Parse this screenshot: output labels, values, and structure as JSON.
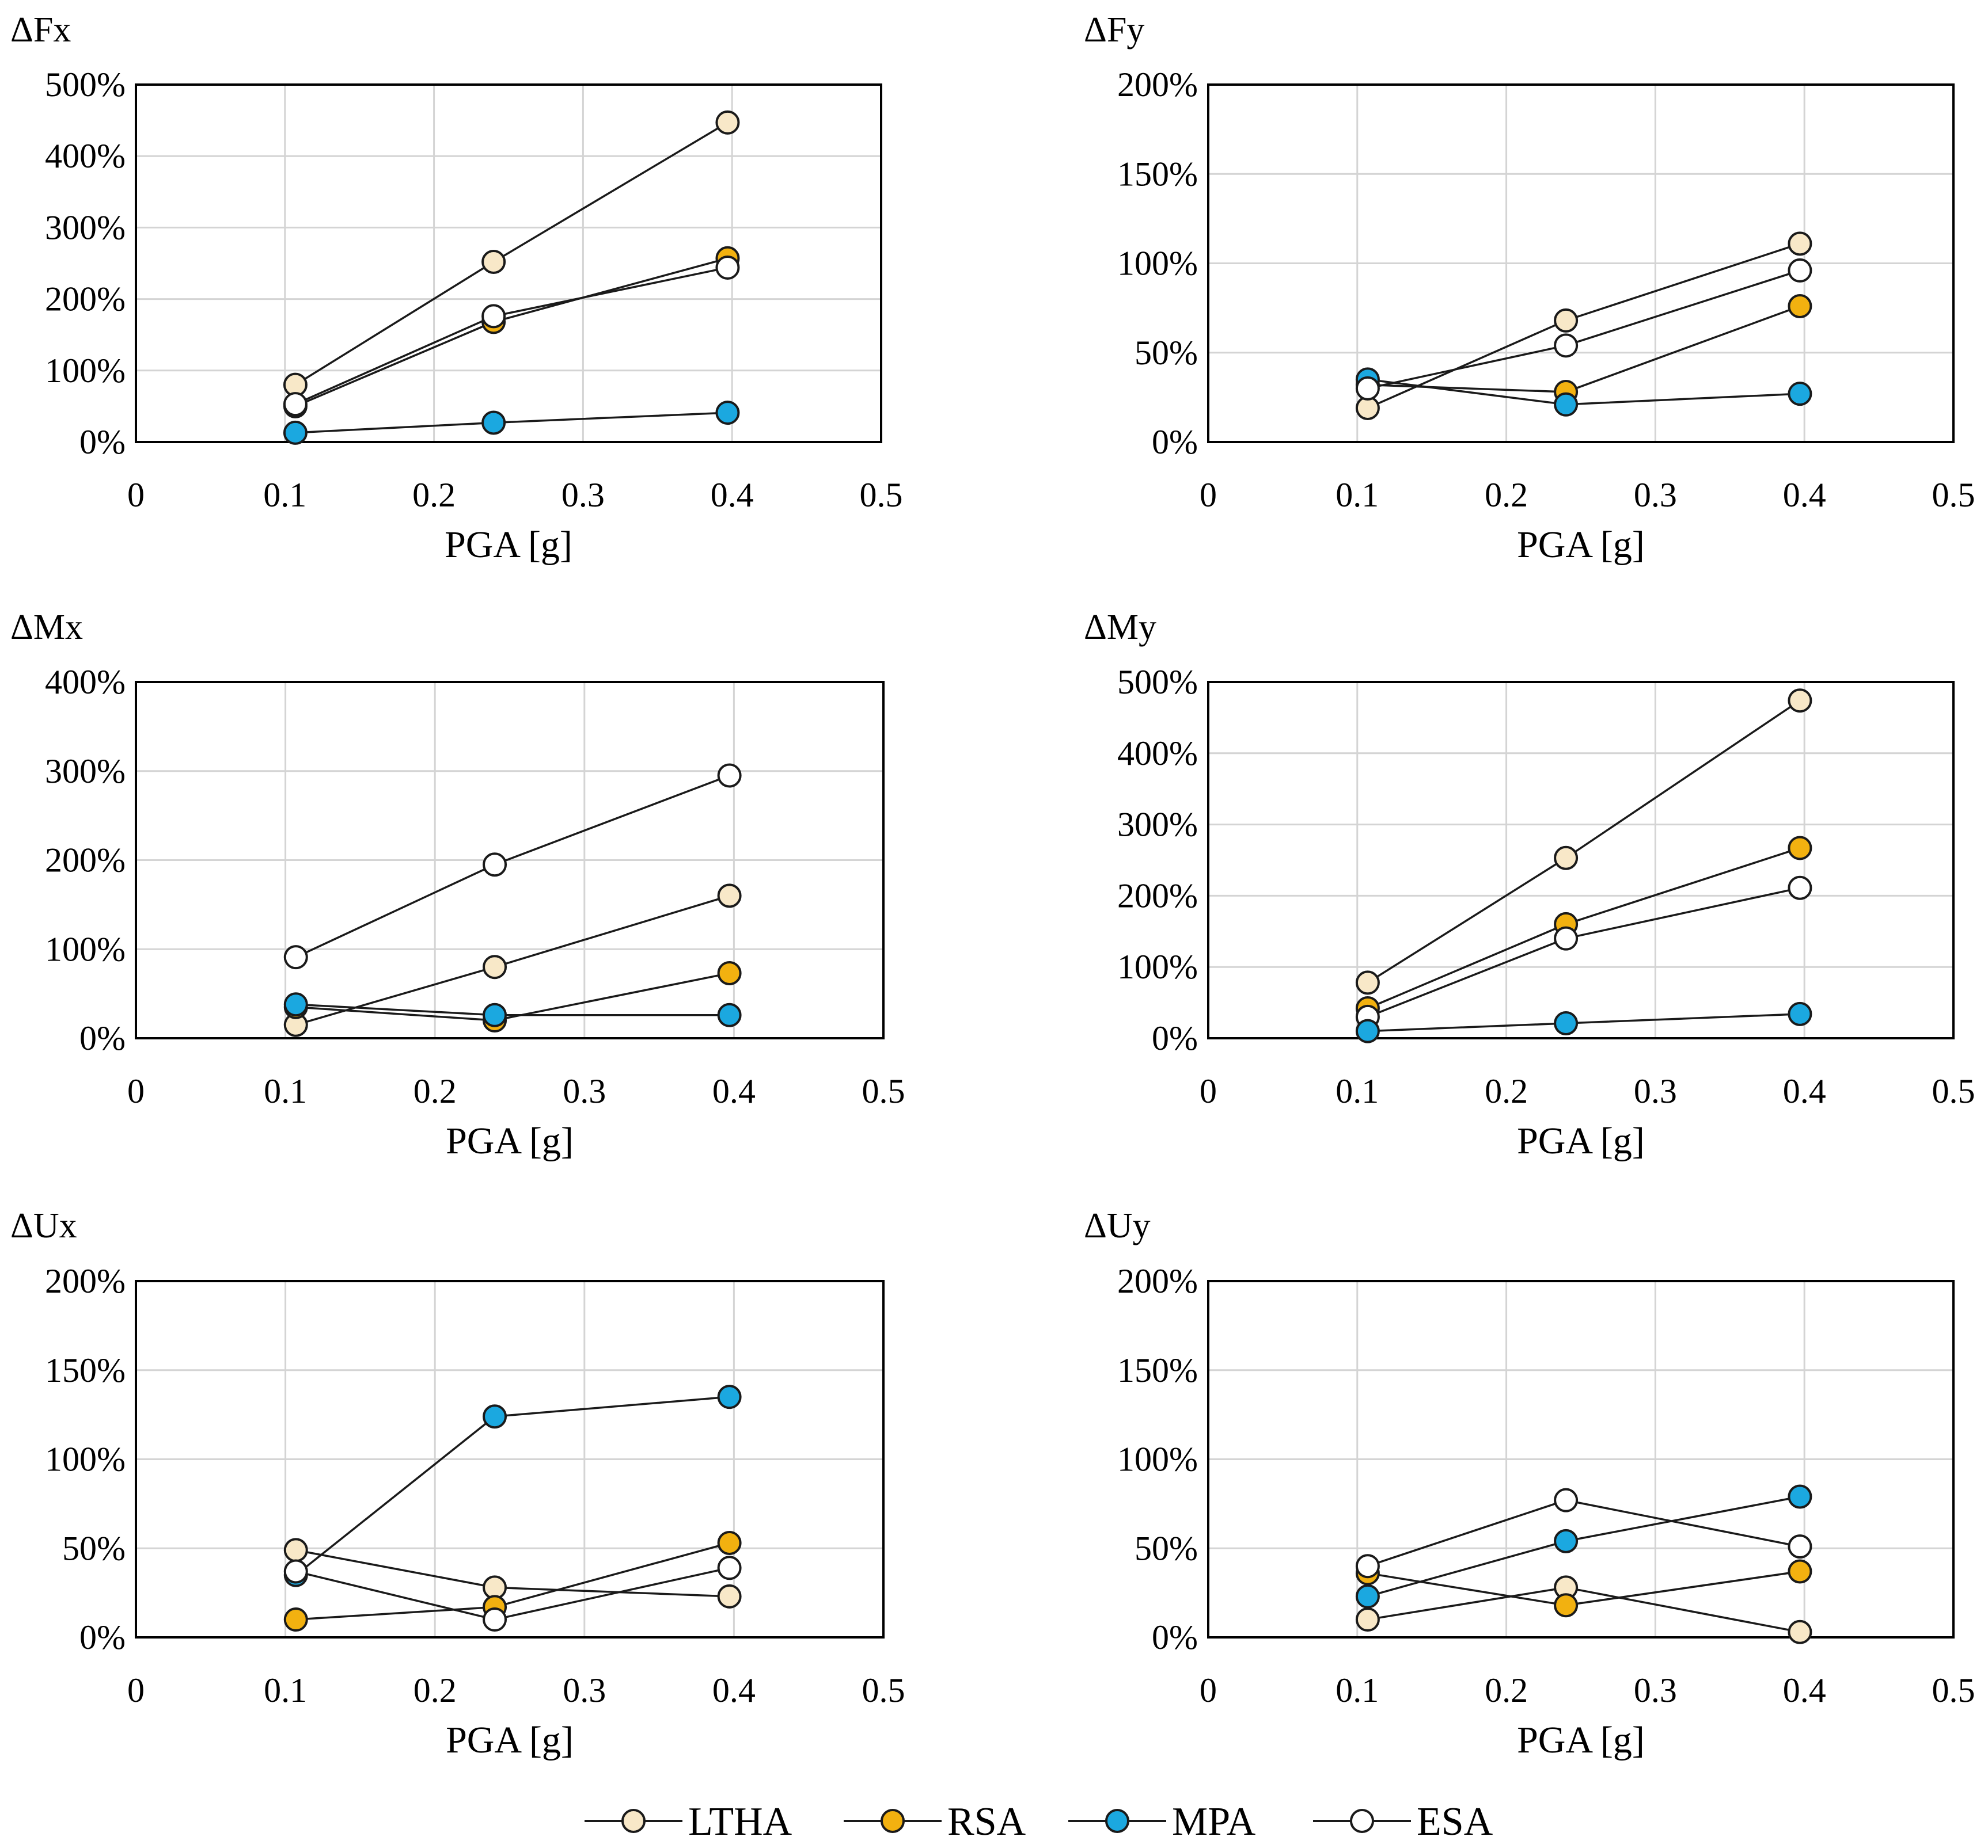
{
  "figure": {
    "legend": [
      {
        "name": "LTHA",
        "marker_fill": "#f8e8c8"
      },
      {
        "name": "RSA",
        "marker_fill": "#f2b110"
      },
      {
        "name": "MPA",
        "marker_fill": "#1ba8e0"
      },
      {
        "name": "ESA",
        "marker_fill": "#ffffff"
      }
    ]
  },
  "chart_data": [
    {
      "type": "line",
      "title": "ΔFx",
      "xlabel": "PGA [g]",
      "ylabel": "",
      "xlim": [
        0,
        0.5
      ],
      "ylim": [
        0,
        500
      ],
      "x_ticks": [
        0,
        0.1,
        0.2,
        0.3,
        0.4,
        0.5
      ],
      "x_tick_labels": [
        "0",
        "0.1",
        "0.2",
        "0.3",
        "0.4",
        "0.5"
      ],
      "y_ticks": [
        0,
        100,
        200,
        300,
        400,
        500
      ],
      "y_tick_labels": [
        "0%",
        "100%",
        "200%",
        "300%",
        "400%",
        "500%"
      ],
      "x": [
        0.107,
        0.24,
        0.397
      ],
      "series": [
        {
          "name": "LTHA",
          "values": [
            80,
            252,
            447
          ]
        },
        {
          "name": "RSA",
          "values": [
            50,
            168,
            257
          ]
        },
        {
          "name": "ESA",
          "values": [
            53,
            176,
            244
          ]
        },
        {
          "name": "MPA",
          "values": [
            13,
            27,
            41
          ]
        }
      ]
    },
    {
      "type": "line",
      "title": "ΔFy",
      "xlabel": "PGA [g]",
      "ylabel": "",
      "xlim": [
        0,
        0.5
      ],
      "ylim": [
        0,
        200
      ],
      "x_ticks": [
        0,
        0.1,
        0.2,
        0.3,
        0.4,
        0.5
      ],
      "x_tick_labels": [
        "0",
        "0.1",
        "0.2",
        "0.3",
        "0.4",
        "0.5"
      ],
      "y_ticks": [
        0,
        50,
        100,
        150,
        200
      ],
      "y_tick_labels": [
        "0%",
        "50%",
        "100%",
        "150%",
        "200%"
      ],
      "x": [
        0.107,
        0.24,
        0.397
      ],
      "series": [
        {
          "name": "LTHA",
          "values": [
            19,
            68,
            111
          ]
        },
        {
          "name": "RSA",
          "values": [
            32,
            28,
            76
          ]
        },
        {
          "name": "MPA",
          "values": [
            35,
            21,
            27
          ]
        },
        {
          "name": "ESA",
          "values": [
            30,
            54,
            96
          ]
        }
      ]
    },
    {
      "type": "line",
      "title": "ΔMx",
      "xlabel": "PGA [g]",
      "ylabel": "",
      "xlim": [
        0,
        0.5
      ],
      "ylim": [
        0,
        400
      ],
      "x_ticks": [
        0,
        0.1,
        0.2,
        0.3,
        0.4,
        0.5
      ],
      "x_tick_labels": [
        "0",
        "0.1",
        "0.2",
        "0.3",
        "0.4",
        "0.5"
      ],
      "y_ticks": [
        0,
        100,
        200,
        300,
        400
      ],
      "y_tick_labels": [
        "0%",
        "100%",
        "200%",
        "300%",
        "400%"
      ],
      "x": [
        0.107,
        0.24,
        0.397
      ],
      "series": [
        {
          "name": "LTHA",
          "values": [
            15,
            80,
            160
          ]
        },
        {
          "name": "RSA",
          "values": [
            35,
            20,
            73
          ]
        },
        {
          "name": "MPA",
          "values": [
            38,
            26,
            26
          ]
        },
        {
          "name": "ESA",
          "values": [
            91,
            195,
            295
          ]
        }
      ]
    },
    {
      "type": "line",
      "title": "ΔMy",
      "xlabel": "PGA [g]",
      "ylabel": "",
      "xlim": [
        0,
        0.5
      ],
      "ylim": [
        0,
        500
      ],
      "x_ticks": [
        0,
        0.1,
        0.2,
        0.3,
        0.4,
        0.5
      ],
      "x_tick_labels": [
        "0",
        "0.1",
        "0.2",
        "0.3",
        "0.4",
        "0.5"
      ],
      "y_ticks": [
        0,
        100,
        200,
        300,
        400,
        500
      ],
      "y_tick_labels": [
        "0%",
        "100%",
        "200%",
        "300%",
        "400%",
        "500%"
      ],
      "x": [
        0.107,
        0.24,
        0.397
      ],
      "series": [
        {
          "name": "LTHA",
          "values": [
            78,
            253,
            474
          ]
        },
        {
          "name": "RSA",
          "values": [
            42,
            160,
            267
          ]
        },
        {
          "name": "ESA",
          "values": [
            30,
            140,
            211
          ]
        },
        {
          "name": "MPA",
          "values": [
            10,
            21,
            34
          ]
        }
      ]
    },
    {
      "type": "line",
      "title": "ΔUx",
      "xlabel": "PGA [g]",
      "ylabel": "",
      "xlim": [
        0,
        0.5
      ],
      "ylim": [
        0,
        200
      ],
      "x_ticks": [
        0,
        0.1,
        0.2,
        0.3,
        0.4,
        0.5
      ],
      "x_tick_labels": [
        "0",
        "0.1",
        "0.2",
        "0.3",
        "0.4",
        "0.5"
      ],
      "y_ticks": [
        0,
        50,
        100,
        150,
        200
      ],
      "y_tick_labels": [
        "0%",
        "50%",
        "100%",
        "150%",
        "200%"
      ],
      "x": [
        0.107,
        0.24,
        0.397
      ],
      "series": [
        {
          "name": "LTHA",
          "values": [
            49,
            28,
            23
          ]
        },
        {
          "name": "RSA",
          "values": [
            10,
            17,
            53
          ]
        },
        {
          "name": "MPA",
          "values": [
            35,
            124,
            135
          ]
        },
        {
          "name": "ESA",
          "values": [
            37,
            10,
            39
          ]
        }
      ]
    },
    {
      "type": "line",
      "title": "ΔUy",
      "xlabel": "PGA [g]",
      "ylabel": "",
      "xlim": [
        0,
        0.5
      ],
      "ylim": [
        0,
        200
      ],
      "x_ticks": [
        0,
        0.1,
        0.2,
        0.3,
        0.4,
        0.5
      ],
      "x_tick_labels": [
        "0",
        "0.1",
        "0.2",
        "0.3",
        "0.4",
        "0.5"
      ],
      "y_ticks": [
        0,
        50,
        100,
        150,
        200
      ],
      "y_tick_labels": [
        "0%",
        "50%",
        "100%",
        "150%",
        "200%"
      ],
      "x": [
        0.107,
        0.24,
        0.397
      ],
      "series": [
        {
          "name": "LTHA",
          "values": [
            10,
            28,
            3
          ]
        },
        {
          "name": "RSA",
          "values": [
            36,
            18,
            37
          ]
        },
        {
          "name": "MPA",
          "values": [
            23,
            54,
            79
          ]
        },
        {
          "name": "ESA",
          "values": [
            40,
            77,
            51
          ]
        }
      ]
    }
  ]
}
